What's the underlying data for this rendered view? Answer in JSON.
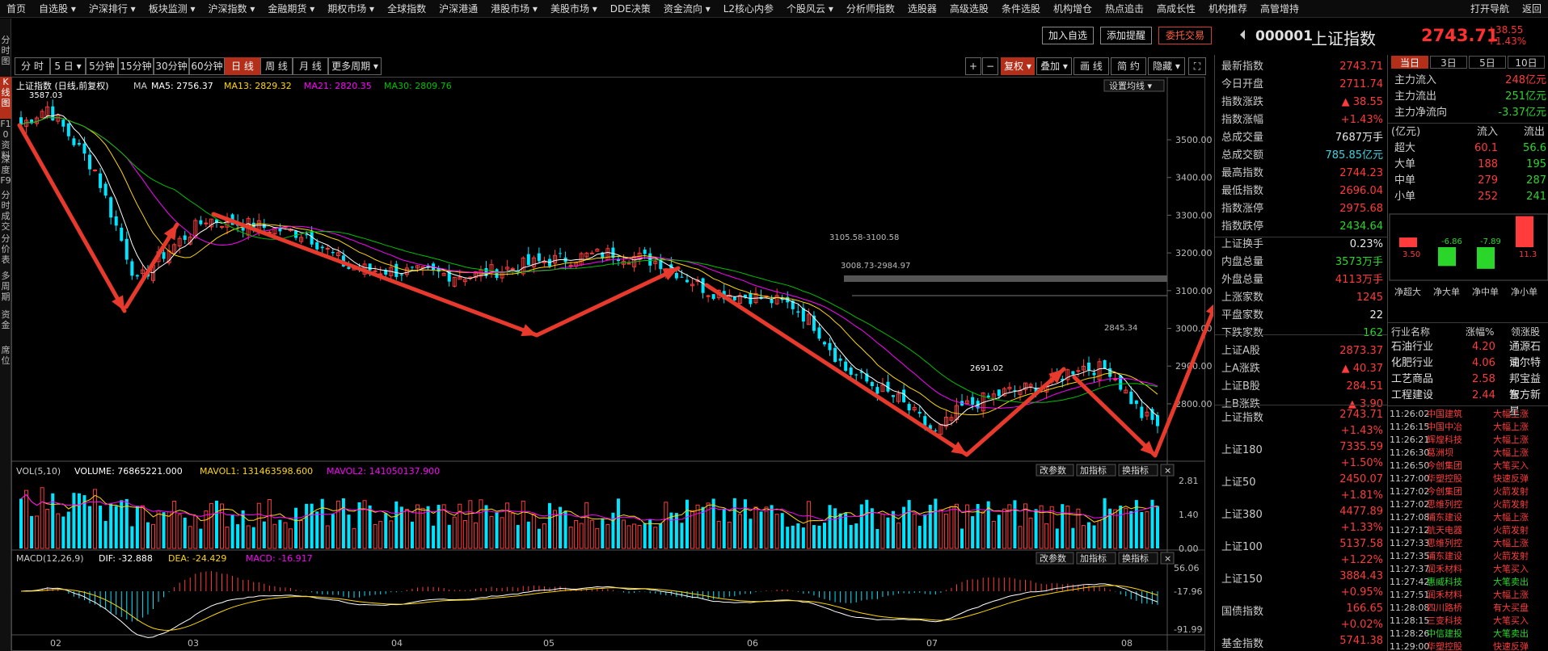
{
  "menu": [
    "首页",
    "自选股 ▾",
    "沪深排行 ▾",
    "板块监测 ▾",
    "沪深指数 ▾",
    "金融期货 ▾",
    "期权市场 ▾",
    "全球指数",
    "沪深港通",
    "港股市场 ▾",
    "美股市场 ▾",
    "DDE决策",
    "资金流向 ▾",
    "L2核心内参",
    "个股风云 ▾",
    "分析师指数",
    "选股器",
    "高级选股",
    "条件选股",
    "机构增仓",
    "热点追击",
    "高成长性",
    "机构推荐",
    "高管增持"
  ],
  "menu_right": [
    "打开导航",
    "返回"
  ],
  "left_tabs": [
    "分时图",
    "K线图",
    "F10资料",
    "深度F9",
    "分时成交",
    "分价表",
    "多周期",
    "资金",
    "席位"
  ],
  "title_buttons": {
    "add_watch": "加入自选",
    "add_alert": "添加提醒",
    "trade": "委托交易"
  },
  "stock": {
    "code": "000001",
    "name": "上证指数",
    "price": "2743.71",
    "change": "+38.55",
    "change_pct": "+1.43%"
  },
  "periods": [
    "分 时",
    "5 日 ▾",
    "5分钟",
    "15分钟",
    "30分钟",
    "60分钟",
    "日 线",
    "周 线",
    "月 线",
    "更多周期 ▾"
  ],
  "tools": [
    "+",
    "−",
    "复权 ▾",
    "叠加 ▾",
    "画 线",
    "简 约",
    "隐藏 ▾",
    "⛶"
  ],
  "ma_legend": {
    "title": "上证指数 (日线,前复权)",
    "ma": "MA",
    "ma5": "MA5: 2756.37",
    "ma13": "MA13: 2829.32",
    "ma21": "MA21: 2820.35",
    "ma30": "MA30: 2809.76",
    "settings": "设置均线 ▾"
  },
  "vol_legend": {
    "label": "VOL(5,10)",
    "volume": "VOLUME: 76865221.000",
    "mavol1": "MAVOL1: 131463598.600",
    "mavol2": "MAVOL2: 141050137.900"
  },
  "macd_legend": {
    "label": "MACD(12,26,9)",
    "dif": "DIF: -32.888",
    "dea": "DEA: -24.429",
    "macd": "MACD: -16.917"
  },
  "panel_buttons": [
    "改参数",
    "加指标",
    "换指标",
    "×"
  ],
  "annotations": {
    "high": "3587.03",
    "low": "2691.02",
    "line1": "3105.58-3100.58",
    "line2": "3008.73-2984.97",
    "line3": "2845.34"
  },
  "colors": {
    "up": "#ff3b3b",
    "down": "#00e5ff",
    "ma5": "#ffffff",
    "ma13": "#ffd700",
    "ma21": "#ff00ff",
    "ma30": "#00c000",
    "arrow": "#e83a2c"
  },
  "chart_data": {
    "type": "candlestick",
    "main": {
      "y_ticks": [
        3500,
        3400,
        3300,
        3200,
        3100,
        3000,
        2900,
        2800
      ],
      "ylim": [
        2650,
        3620
      ],
      "x_labels": [
        "02",
        "03",
        "04",
        "05",
        "06",
        "07",
        "08"
      ],
      "waypoints": [
        {
          "i": 0,
          "v": 3540
        },
        {
          "i": 5,
          "v": 3587
        },
        {
          "i": 14,
          "v": 3420
        },
        {
          "i": 22,
          "v": 3120
        },
        {
          "i": 26,
          "v": 3185
        },
        {
          "i": 35,
          "v": 3290
        },
        {
          "i": 45,
          "v": 3270
        },
        {
          "i": 54,
          "v": 3250
        },
        {
          "i": 62,
          "v": 3160
        },
        {
          "i": 72,
          "v": 3150
        },
        {
          "i": 85,
          "v": 3140
        },
        {
          "i": 100,
          "v": 3180
        },
        {
          "i": 112,
          "v": 3200
        },
        {
          "i": 121,
          "v": 3175
        },
        {
          "i": 130,
          "v": 3100
        },
        {
          "i": 140,
          "v": 3080
        },
        {
          "i": 146,
          "v": 3060
        },
        {
          "i": 150,
          "v": 3010
        },
        {
          "i": 156,
          "v": 2890
        },
        {
          "i": 166,
          "v": 2810
        },
        {
          "i": 173,
          "v": 2720
        },
        {
          "i": 178,
          "v": 2790
        },
        {
          "i": 186,
          "v": 2830
        },
        {
          "i": 194,
          "v": 2850
        },
        {
          "i": 200,
          "v": 2900
        },
        {
          "i": 206,
          "v": 2890
        },
        {
          "i": 212,
          "v": 2770
        },
        {
          "i": 215,
          "v": 2745
        }
      ]
    },
    "volume": {
      "y_ticks": [
        "2.81",
        "1.40",
        "0.00"
      ],
      "ylim": [
        0,
        2.81
      ]
    },
    "macd": {
      "y_ticks": [
        "56.06",
        "-17.96",
        "-91.99"
      ],
      "ylim": [
        -91.99,
        56.06
      ]
    }
  },
  "right": {
    "quote": [
      {
        "label": "最新指数",
        "value": "2743.71",
        "cls": "red"
      },
      {
        "label": "今日开盘",
        "value": "2711.74",
        "cls": "red"
      },
      {
        "label": "指数涨跌",
        "value": "▲ 38.55",
        "cls": "red"
      },
      {
        "label": "指数涨幅",
        "value": "+1.43%",
        "cls": "red"
      },
      {
        "label": "总成交量",
        "value": "7687万手",
        "cls": "white"
      },
      {
        "label": "总成交额",
        "value": "785.85亿元",
        "cls": "cyan"
      },
      {
        "label": "最高指数",
        "value": "2744.23",
        "cls": "red"
      },
      {
        "label": "最低指数",
        "value": "2696.04",
        "cls": "red"
      },
      {
        "label": "指数涨停",
        "value": "2975.68",
        "cls": "red"
      },
      {
        "label": "指数跌停",
        "value": "2434.64",
        "cls": "green"
      },
      {
        "label": "上证换手",
        "value": "0.23%",
        "cls": "white"
      },
      {
        "label": "内盘总量",
        "value": "3573万手",
        "cls": "green"
      },
      {
        "label": "外盘总量",
        "value": "4113万手",
        "cls": "red"
      },
      {
        "label": "上涨家数",
        "value": "1245",
        "cls": "red"
      },
      {
        "label": "平盘家数",
        "value": "22",
        "cls": "white"
      },
      {
        "label": "下跌家数",
        "value": "162",
        "cls": "green"
      },
      {
        "label": "上证A股",
        "value": "2873.37",
        "cls": "red"
      },
      {
        "label": "上A涨跌",
        "value": "▲ 40.37",
        "cls": "red"
      },
      {
        "label": "上证B股",
        "value": "284.51",
        "cls": "red"
      },
      {
        "label": "上B涨跌",
        "value": "▲ 3.90",
        "cls": "red"
      }
    ],
    "indices": [
      {
        "name": "上证指数",
        "price": "2743.71",
        "chg": "+1.43%"
      },
      {
        "name": "上证180",
        "price": "7335.59",
        "chg": "+1.50%"
      },
      {
        "name": "上证50",
        "price": "2450.07",
        "chg": "+1.81%"
      },
      {
        "name": "上证380",
        "price": "4477.89",
        "chg": "+1.33%"
      },
      {
        "name": "上证100",
        "price": "5137.58",
        "chg": "+1.22%"
      },
      {
        "name": "上证150",
        "price": "3884.43",
        "chg": "+0.95%"
      },
      {
        "name": "国债指数",
        "price": "166.65",
        "chg": "+0.02%"
      },
      {
        "name": "基金指数",
        "price": "5741.38",
        "chg": ""
      }
    ],
    "flow_tabs": [
      "当日",
      "3日",
      "5日",
      "10日"
    ],
    "flow": [
      {
        "label": "主力流入",
        "value": "248亿元",
        "cls": "red"
      },
      {
        "label": "主力流出",
        "value": "251亿元",
        "cls": "green"
      },
      {
        "label": "主力净流向",
        "value": "-3.37亿元",
        "cls": "green"
      }
    ],
    "money_header": {
      "unit": "(亿元)",
      "in": "流入",
      "out": "流出"
    },
    "money_table": [
      {
        "label": "超大",
        "in": "60.1",
        "out": "56.6"
      },
      {
        "label": "大单",
        "in": "188",
        "out": "195"
      },
      {
        "label": "中单",
        "in": "279",
        "out": "287"
      },
      {
        "label": "小单",
        "in": "252",
        "out": "241"
      }
    ],
    "net_bars": [
      {
        "label": "净超大",
        "value": 3.5,
        "text": "3.50"
      },
      {
        "label": "净大单",
        "value": -6.86,
        "text": "-6.86"
      },
      {
        "label": "净中单",
        "value": -7.89,
        "text": "-7.89"
      },
      {
        "label": "净小单",
        "value": 11.3,
        "text": "11.3"
      }
    ],
    "industry_header": {
      "name": "行业名称",
      "pct": "涨幅%",
      "leader": "领涨股"
    },
    "industries": [
      {
        "name": "石油行业",
        "pct": "4.20",
        "leader": "通源石油"
      },
      {
        "name": "化肥行业",
        "pct": "4.06",
        "leader": "司尔特"
      },
      {
        "name": "工艺商品",
        "pct": "2.58",
        "leader": "邦宝益智"
      },
      {
        "name": "工程建设",
        "pct": "2.44",
        "leader": "东方新星"
      }
    ],
    "fast": [
      {
        "t": "11:26:02",
        "n": "中国建筑",
        "a": "大幅上涨",
        "c": "red"
      },
      {
        "t": "11:26:15",
        "n": "中国中冶",
        "a": "大幅上涨",
        "c": "red"
      },
      {
        "t": "11:26:21",
        "n": "辉煌科技",
        "a": "大幅上涨",
        "c": "red"
      },
      {
        "t": "11:26:30",
        "n": "葛洲坝",
        "a": "大幅上涨",
        "c": "red"
      },
      {
        "t": "11:26:50",
        "n": "今创集团",
        "a": "大笔买入",
        "c": "red"
      },
      {
        "t": "11:27:00",
        "n": "华塑控股",
        "a": "快速反弹",
        "c": "red"
      },
      {
        "t": "11:27:02",
        "n": "今创集团",
        "a": "火箭发射",
        "c": "red"
      },
      {
        "t": "11:27:02",
        "n": "思维列控",
        "a": "火箭发射",
        "c": "red"
      },
      {
        "t": "11:27:08",
        "n": "浦东建设",
        "a": "大幅上涨",
        "c": "red"
      },
      {
        "t": "11:27:12",
        "n": "航天电器",
        "a": "火箭发射",
        "c": "red"
      },
      {
        "t": "11:27:33",
        "n": "思维列控",
        "a": "大幅上涨",
        "c": "red"
      },
      {
        "t": "11:27:35",
        "n": "浦东建设",
        "a": "火箭发射",
        "c": "red"
      },
      {
        "t": "11:27:37",
        "n": "润禾材料",
        "a": "大笔买入",
        "c": "red"
      },
      {
        "t": "11:27:42",
        "n": "惠威科技",
        "a": "大笔卖出",
        "c": "green"
      },
      {
        "t": "11:27:51",
        "n": "润禾材料",
        "a": "大幅上涨",
        "c": "red"
      },
      {
        "t": "11:28:08",
        "n": "四川路桥",
        "a": "有大买盘",
        "c": "red"
      },
      {
        "t": "11:28:15",
        "n": "三变科技",
        "a": "大笔买入",
        "c": "red"
      },
      {
        "t": "11:28:26",
        "n": "中信建投",
        "a": "大笔卖出",
        "c": "green"
      },
      {
        "t": "11:29:00",
        "n": "华塑控股",
        "a": "快速反弹",
        "c": "red"
      }
    ]
  }
}
